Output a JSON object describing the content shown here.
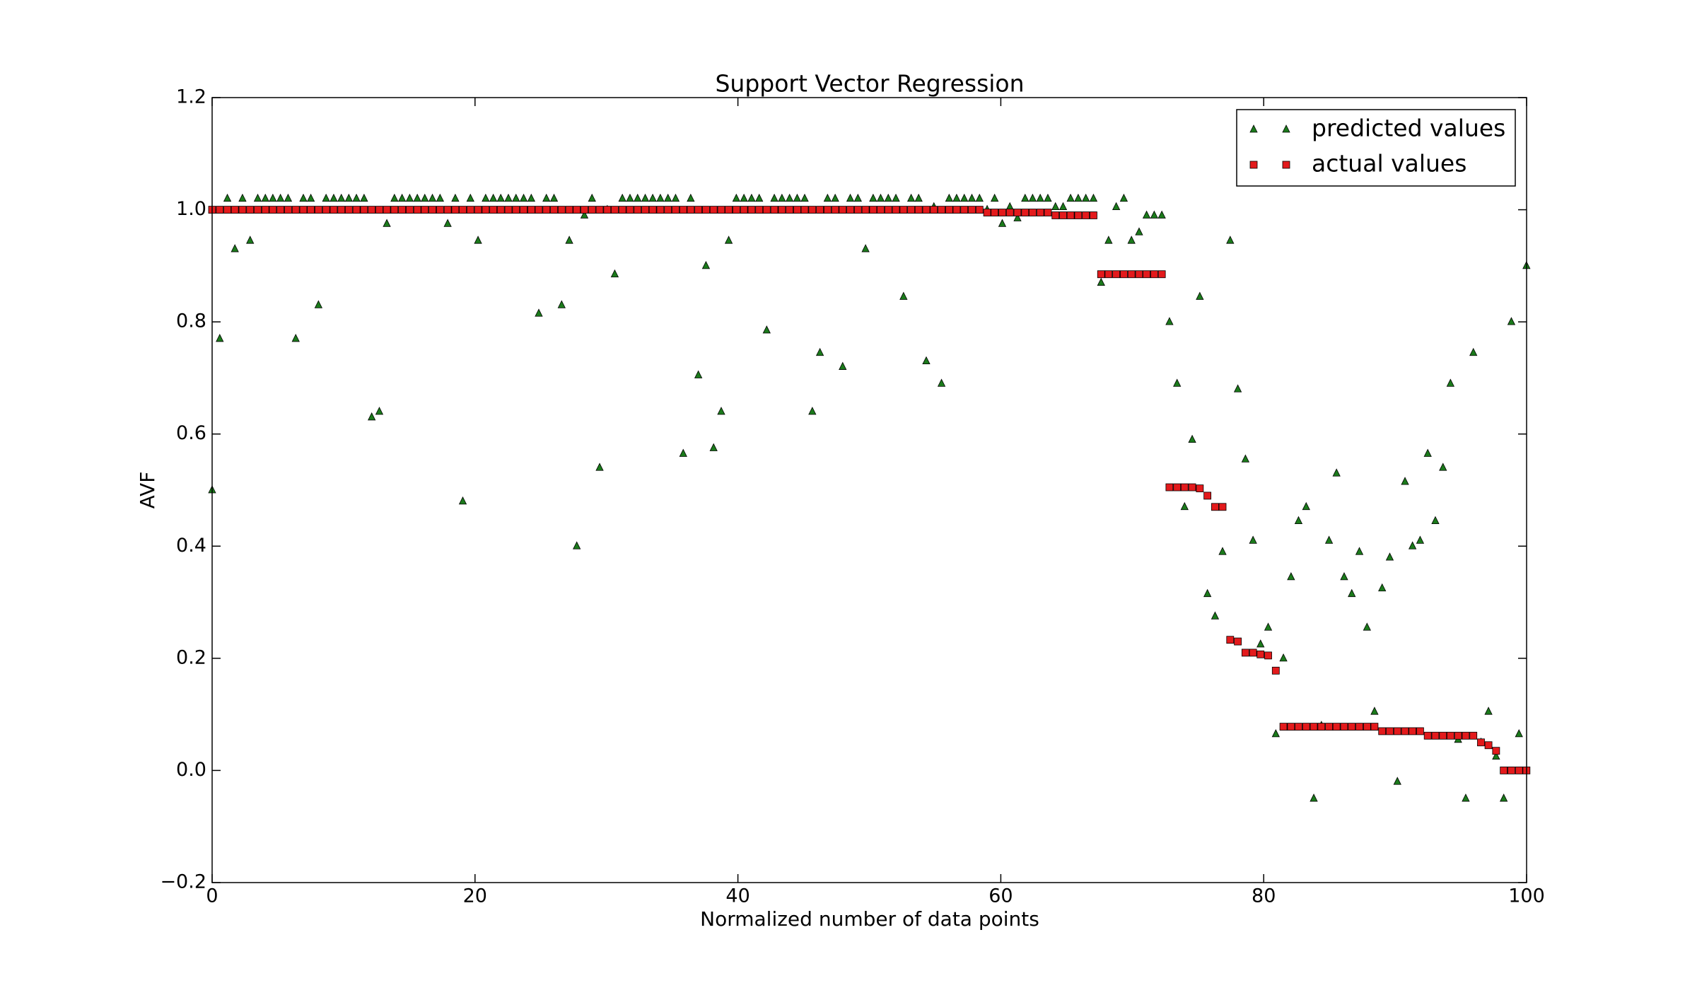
{
  "chart_data": {
    "type": "scatter",
    "title": "Support Vector Regression",
    "xlabel": "Normalized number of data points",
    "ylabel": "AVF",
    "xlim": [
      0,
      100
    ],
    "ylim": [
      -0.2,
      1.2
    ],
    "xticks": [
      0,
      20,
      40,
      60,
      80,
      100
    ],
    "yticks": [
      {
        "value": -0.2,
        "label": "−0.2"
      },
      {
        "value": 0,
        "label": "0.0"
      },
      0.2,
      0.4,
      0.6,
      0.8,
      {
        "value": 1,
        "label": "1.0"
      },
      1.2
    ],
    "legend": "upper right",
    "grid": false,
    "x": [
      0,
      0.58,
      1.16,
      1.73,
      2.31,
      2.89,
      3.47,
      4.05,
      4.62,
      5.2,
      5.78,
      6.36,
      6.94,
      7.51,
      8.09,
      8.67,
      9.25,
      9.83,
      10.4,
      10.98,
      11.56,
      12.14,
      12.72,
      13.29,
      13.87,
      14.45,
      15.03,
      15.61,
      16.18,
      16.76,
      17.34,
      17.92,
      18.5,
      19.07,
      19.65,
      20.23,
      20.81,
      21.39,
      21.96,
      22.54,
      23.12,
      23.7,
      24.28,
      24.85,
      25.43,
      26.01,
      26.59,
      27.17,
      27.74,
      28.32,
      28.9,
      29.48,
      30.06,
      30.63,
      31.21,
      31.79,
      32.37,
      32.95,
      33.52,
      34.1,
      34.68,
      35.26,
      35.84,
      36.41,
      36.99,
      37.57,
      38.15,
      38.73,
      39.3,
      39.88,
      40.46,
      41.04,
      41.62,
      42.19,
      42.77,
      43.35,
      43.93,
      44.51,
      45.08,
      45.66,
      46.24,
      46.82,
      47.4,
      47.97,
      48.55,
      49.13,
      49.71,
      50.29,
      50.86,
      51.44,
      52.02,
      52.6,
      53.18,
      53.75,
      54.33,
      54.91,
      55.49,
      56.07,
      56.64,
      57.22,
      57.8,
      58.38,
      58.96,
      59.53,
      60.11,
      60.69,
      61.27,
      61.85,
      62.42,
      63.0,
      63.58,
      64.16,
      64.74,
      65.31,
      65.89,
      66.47,
      67.05,
      67.63,
      68.2,
      68.78,
      69.36,
      69.94,
      70.52,
      71.09,
      71.67,
      72.25,
      72.83,
      73.41,
      73.98,
      74.56,
      75.14,
      75.72,
      76.3,
      76.87,
      77.45,
      78.03,
      78.61,
      79.19,
      79.76,
      80.34,
      80.92,
      81.5,
      82.08,
      82.65,
      83.23,
      83.81,
      84.39,
      84.97,
      85.54,
      86.12,
      86.7,
      87.28,
      87.86,
      88.43,
      89.01,
      89.59,
      90.17,
      90.75,
      91.32,
      91.9,
      92.48,
      93.06,
      93.64,
      94.21,
      94.79,
      95.37,
      95.95,
      96.53,
      97.1,
      97.68,
      98.26,
      98.84,
      99.42,
      99.99
    ],
    "series": [
      {
        "name": "predicted values",
        "color": "#1b7a1b",
        "marker": "triangle",
        "values": [
          0.5,
          0.77,
          1.02,
          0.93,
          1.02,
          0.945,
          1.02,
          1.02,
          1.02,
          1.02,
          1.02,
          0.77,
          1.02,
          1.02,
          0.83,
          1.02,
          1.02,
          1.02,
          1.02,
          1.02,
          1.02,
          0.63,
          0.64,
          0.975,
          1.02,
          1.02,
          1.02,
          1.02,
          1.02,
          1.02,
          1.02,
          0.975,
          1.02,
          0.48,
          1.02,
          0.945,
          1.02,
          1.02,
          1.02,
          1.02,
          1.02,
          1.02,
          1.02,
          0.815,
          1.02,
          1.02,
          0.83,
          0.945,
          0.4,
          0.99,
          1.02,
          0.54,
          1.0,
          0.885,
          1.02,
          1.02,
          1.02,
          1.02,
          1.02,
          1.02,
          1.02,
          1.02,
          0.565,
          1.02,
          0.705,
          0.9,
          0.575,
          0.64,
          0.945,
          1.02,
          1.02,
          1.02,
          1.02,
          0.785,
          1.02,
          1.02,
          1.02,
          1.02,
          1.02,
          0.64,
          0.745,
          1.02,
          1.02,
          0.72,
          1.02,
          1.02,
          0.93,
          1.02,
          1.02,
          1.02,
          1.02,
          0.845,
          1.02,
          1.02,
          0.73,
          1.005,
          0.69,
          1.02,
          1.02,
          1.02,
          1.02,
          1.02,
          1.0,
          1.02,
          0.975,
          1.005,
          0.985,
          1.02,
          1.02,
          1.02,
          1.02,
          1.005,
          1.005,
          1.02,
          1.02,
          1.02,
          1.02,
          0.87,
          0.945,
          1.005,
          1.02,
          0.945,
          0.96,
          0.99,
          0.99,
          0.99,
          0.8,
          0.69,
          0.47,
          0.59,
          0.845,
          0.315,
          0.275,
          0.39,
          0.945,
          0.68,
          0.555,
          0.41,
          0.225,
          0.255,
          0.065,
          0.2,
          0.345,
          0.445,
          0.47,
          -0.05,
          0.08,
          0.41,
          0.53,
          0.345,
          0.315,
          0.39,
          0.255,
          0.105,
          0.325,
          0.38,
          -0.02,
          0.515,
          0.4,
          0.41,
          0.565,
          0.445,
          0.54,
          0.69,
          0.055,
          -0.05,
          0.745,
          0.05,
          0.105,
          0.025,
          -0.05,
          0.8,
          0.065,
          0.9
        ]
      },
      {
        "name": "actual values",
        "color": "#e31a1c",
        "marker": "square",
        "values": [
          1,
          1,
          1,
          1,
          1,
          1,
          1,
          1,
          1,
          1,
          1,
          1,
          1,
          1,
          1,
          1,
          1,
          1,
          1,
          1,
          1,
          1,
          1,
          1,
          1,
          1,
          1,
          1,
          1,
          1,
          1,
          1,
          1,
          1,
          1,
          1,
          1,
          1,
          1,
          1,
          1,
          1,
          1,
          1,
          1,
          1,
          1,
          1,
          1,
          1,
          1,
          1,
          1,
          1,
          1,
          1,
          1,
          1,
          1,
          1,
          1,
          1,
          1,
          1,
          1,
          1,
          1,
          1,
          1,
          1,
          1,
          1,
          1,
          1,
          1,
          1,
          1,
          1,
          1,
          1,
          1,
          1,
          1,
          1,
          1,
          1,
          1,
          1,
          1,
          1,
          1,
          1,
          1,
          1,
          1,
          1,
          1,
          1,
          1,
          1,
          1,
          1,
          0.995,
          0.995,
          0.995,
          0.995,
          0.995,
          0.995,
          0.995,
          0.995,
          0.995,
          0.99,
          0.99,
          0.99,
          0.99,
          0.99,
          0.99,
          0.885,
          0.885,
          0.885,
          0.885,
          0.885,
          0.885,
          0.885,
          0.885,
          0.885,
          0.505,
          0.505,
          0.505,
          0.505,
          0.503,
          0.49,
          0.47,
          0.47,
          0.233,
          0.23,
          0.21,
          0.21,
          0.207,
          0.205,
          0.178,
          0.078,
          0.078,
          0.078,
          0.078,
          0.078,
          0.078,
          0.078,
          0.078,
          0.078,
          0.078,
          0.078,
          0.078,
          0.078,
          0.07,
          0.07,
          0.07,
          0.07,
          0.07,
          0.07,
          0.062,
          0.062,
          0.062,
          0.062,
          0.062,
          0.062,
          0.062,
          0.05,
          0.045,
          0.035,
          0,
          0,
          0,
          0
        ]
      }
    ]
  }
}
